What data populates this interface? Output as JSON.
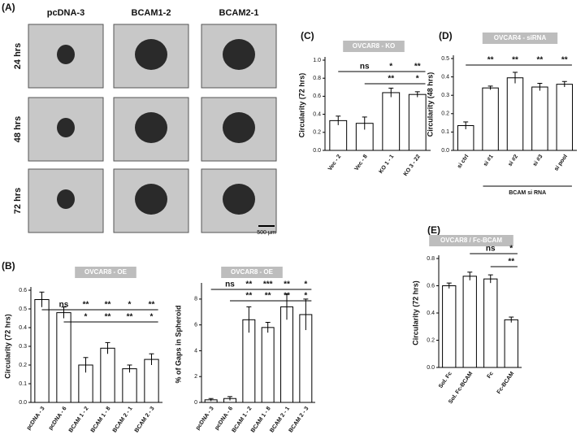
{
  "panel_a": {
    "label": "(A)",
    "columns": [
      "pcDNA-3",
      "BCAM1-2",
      "BCAM2-1"
    ],
    "rows": [
      "24 hrs",
      "48 hrs",
      "72 hrs"
    ],
    "scale_bar": "500 μm"
  },
  "chart_data": [
    {
      "type": "bar",
      "label": "(B)",
      "title": "OVCAR8 - OE",
      "ylabel": "Circularity (72 hrs)",
      "categories": [
        "pcDNA - 3",
        "pcDNA - 6",
        "BCAM 1 - 2",
        "BCAM 1 - 8",
        "BCAM 2 - 1",
        "BCAM 2 - 3"
      ],
      "values": [
        0.55,
        0.48,
        0.2,
        0.29,
        0.18,
        0.23
      ],
      "errors": [
        0.04,
        0.03,
        0.04,
        0.03,
        0.02,
        0.03
      ],
      "ylim": [
        0,
        0.6
      ],
      "yticks": [
        {
          "value": 0,
          "label": "0.0"
        },
        0.1,
        0.2,
        0.3,
        0.4,
        0.5,
        0.6
      ],
      "significance": [
        [
          null,
          "ns",
          "**",
          "**",
          "*",
          "**"
        ],
        [
          null,
          null,
          "*",
          "**",
          "**",
          "*"
        ]
      ]
    },
    {
      "type": "bar",
      "title": "OVCAR8 - OE",
      "ylabel": "% of Gaps in Spheroid",
      "categories": [
        "pcDNA - 3",
        "pcDNA - 6",
        "BCAM 1 - 2",
        "BCAM 1 - 8",
        "BCAM 2 - 1",
        "BCAM 2 - 3"
      ],
      "values": [
        0.2,
        0.3,
        6.4,
        5.8,
        7.4,
        6.8
      ],
      "errors": [
        0.1,
        0.15,
        1.0,
        0.4,
        1.0,
        1.2
      ],
      "ylim": [
        0,
        9
      ],
      "yticks": [
        0,
        2,
        4,
        6,
        8
      ],
      "significance": [
        [
          null,
          "ns",
          "**",
          "***",
          "**",
          "*"
        ],
        [
          null,
          null,
          "**",
          "**",
          "**",
          "*"
        ]
      ]
    },
    {
      "type": "bar",
      "label": "(C)",
      "title": "OVCAR8 - KO",
      "ylabel": "Circularity (72 hrs)",
      "categories": [
        "Vec - 2",
        "Vec - 8",
        "KO 1 - 1",
        "KO 3 - 22"
      ],
      "values": [
        0.33,
        0.3,
        0.64,
        0.62
      ],
      "errors": [
        0.05,
        0.07,
        0.05,
        0.03
      ],
      "ylim": [
        0,
        1
      ],
      "yticks": [
        {
          "value": 0,
          "label": "0.0"
        },
        0.2,
        0.4,
        0.6,
        0.8,
        {
          "value": 1,
          "label": "1.0"
        }
      ],
      "significance": [
        [
          null,
          "ns",
          "*",
          "**"
        ],
        [
          null,
          null,
          "**",
          "*"
        ]
      ]
    },
    {
      "type": "bar",
      "label": "(D)",
      "title": "OVCAR4 - siRNA",
      "ylabel": "Circularity (48 hrs)",
      "categories": [
        "si ctrl",
        "si #1",
        "si #2",
        "si #3",
        "si pool"
      ],
      "group_label": "BCAM si RNA",
      "values": [
        0.135,
        0.34,
        0.395,
        0.345,
        0.36
      ],
      "errors": [
        0.02,
        0.01,
        0.03,
        0.02,
        0.015
      ],
      "ylim": [
        0,
        0.5
      ],
      "yticks": [
        {
          "value": 0,
          "label": "0.0"
        },
        0.1,
        0.2,
        0.3,
        0.4,
        0.5
      ],
      "significance": [
        [
          null,
          "**",
          "**",
          "**",
          "**"
        ]
      ]
    },
    {
      "type": "bar",
      "label": "(E)",
      "title": "OVCAR8 / Fc-BCAM",
      "ylabel": "Circularity (72 hrs)",
      "categories": [
        "Sol. Fc",
        "Sol. Fc-BCAM",
        "Fc",
        "Fc-BCAM"
      ],
      "values": [
        0.6,
        0.67,
        0.65,
        0.35
      ],
      "errors": [
        0.02,
        0.03,
        0.03,
        0.02
      ],
      "ylim": [
        0,
        0.8
      ],
      "yticks": [
        {
          "value": 0,
          "label": "0.0"
        },
        0.2,
        0.4,
        0.6,
        0.8
      ],
      "significance": [
        [
          null,
          null,
          "ns",
          "*"
        ],
        [
          null,
          null,
          null,
          "**"
        ]
      ]
    }
  ]
}
